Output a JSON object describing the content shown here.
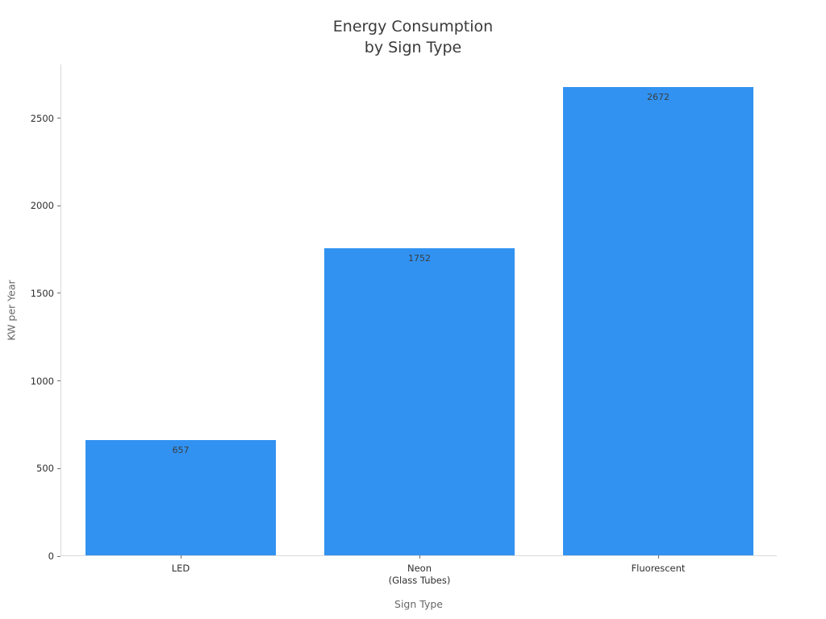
{
  "chart_data": {
    "type": "bar",
    "title": "Energy Consumption\nby Sign Type",
    "categories": [
      "LED",
      "Neon\n(Glass Tubes)",
      "Fluorescent"
    ],
    "values": [
      657,
      1752,
      2672
    ],
    "value_labels": [
      "657",
      "1752",
      "2672"
    ],
    "xlabel": "Sign Type",
    "ylabel": "KW per Year",
    "yticks": [
      0,
      500,
      1000,
      1500,
      2000,
      2500
    ],
    "ytick_labels": [
      "0",
      "500",
      "1000",
      "1500",
      "2000",
      "2500"
    ],
    "ylim": [
      0,
      2806
    ],
    "bar_color": "#3192f1",
    "bar_width_fraction": 0.8,
    "grid": false,
    "legend": null,
    "spines": [
      "left",
      "bottom"
    ]
  },
  "colors": {
    "background": "#ffffff",
    "bar": "#3192f1",
    "spine": "#d9d9d9",
    "tick": "#6e6e6e",
    "tick_label": "#2e2e2e",
    "title_text": "#3a3a3a",
    "axis_title_text": "#666666",
    "value_label_text": "#3d3d3d"
  }
}
